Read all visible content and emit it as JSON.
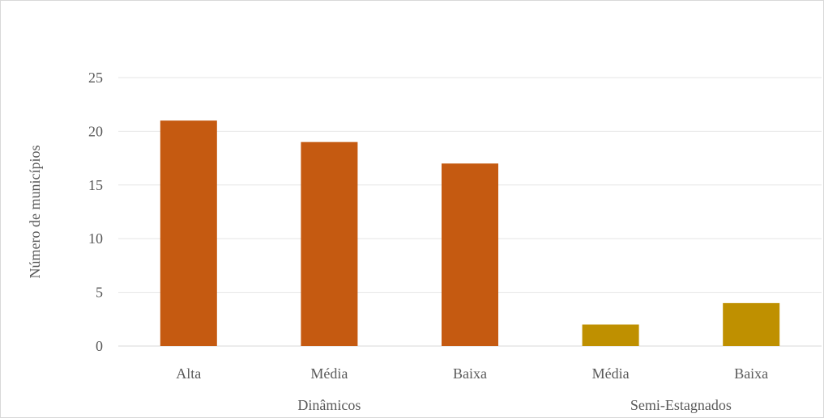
{
  "chart_data": {
    "type": "bar",
    "title": "",
    "xlabel": "",
    "ylabel": "Número de municípios",
    "ylim": [
      0,
      25
    ],
    "yticks": [
      0,
      5,
      10,
      15,
      20,
      25
    ],
    "grid": true,
    "legend": "none",
    "categories": [
      "Alta",
      "Média",
      "Baixa",
      "Média",
      "Baixa"
    ],
    "groups": [
      {
        "name": "Dinâmicos",
        "color": "#c55a11",
        "categories": [
          "Alta",
          "Média",
          "Baixa"
        ],
        "values": [
          21,
          19,
          17
        ]
      },
      {
        "name": "Semi-Estagnados",
        "color": "#bf9000",
        "categories": [
          "Média",
          "Baixa"
        ],
        "values": [
          2,
          4
        ]
      }
    ]
  }
}
